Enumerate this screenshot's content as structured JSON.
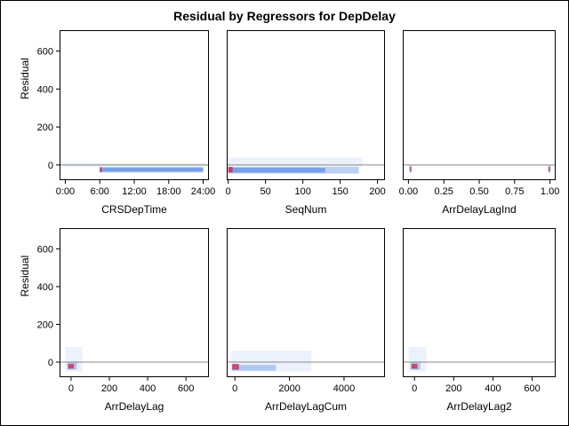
{
  "chart_data": {
    "type": "heatmap",
    "title": "Residual by Regressors for DepDelay",
    "ylabel": "Residual",
    "ylim": [
      -80,
      710
    ],
    "yticks": [
      0,
      200,
      400,
      600
    ],
    "reference_line_y": 0,
    "colors": {
      "frame": "#000000",
      "reference_line": "#888888",
      "low_density": "#dbe6fb",
      "mid_density": "#3f78e0",
      "high_density": "#cc3355"
    },
    "panels": [
      {
        "xlabel": "CRSDepTime",
        "xlim": [
          -60,
          1500
        ],
        "xticks": [
          0,
          360,
          720,
          1080,
          1440
        ],
        "xticklabels": [
          "0:00",
          "6:00",
          "12:00",
          "18:00",
          "24:00"
        ],
        "density": [
          {
            "x": [
              -40,
              1480
            ],
            "y": [
              -10,
              10
            ],
            "level": 1
          },
          {
            "x": [
              360,
              1440
            ],
            "y": [
              -40,
              -10
            ],
            "level": 2
          },
          {
            "x": [
              360,
              1440
            ],
            "y": [
              -35,
              -15
            ],
            "level": 3
          },
          {
            "x": [
              360,
              380
            ],
            "y": [
              -38,
              -12
            ],
            "level": 5
          }
        ]
      },
      {
        "xlabel": "SeqNum",
        "xlim": [
          -2,
          210
        ],
        "xticks": [
          0,
          50,
          100,
          150,
          200
        ],
        "xticklabels": [
          "0",
          "50",
          "100",
          "150",
          "200"
        ],
        "density": [
          {
            "x": [
              0,
              180
            ],
            "y": [
              -10,
              40
            ],
            "level": 1
          },
          {
            "x": [
              0,
              175
            ],
            "y": [
              -45,
              -10
            ],
            "level": 2
          },
          {
            "x": [
              0,
              130
            ],
            "y": [
              -40,
              -15
            ],
            "level": 3
          },
          {
            "x": [
              0,
              6
            ],
            "y": [
              -40,
              -10
            ],
            "level": 5
          }
        ]
      },
      {
        "xlabel": "ArrDelayLagInd",
        "xlim": [
          -0.04,
          1.04
        ],
        "xticks": [
          0,
          0.25,
          0.5,
          0.75,
          1
        ],
        "xticklabels": [
          "0.00",
          "0.25",
          "0.50",
          "0.75",
          "1.00"
        ],
        "density": [
          {
            "x": [
              0.005,
              0.025
            ],
            "y": [
              -40,
              0
            ],
            "level": 2
          },
          {
            "x": [
              0.01,
              0.02
            ],
            "y": [
              -35,
              -10
            ],
            "level": 5
          },
          {
            "x": [
              0.985,
              1.005
            ],
            "y": [
              -40,
              0
            ],
            "level": 2
          },
          {
            "x": [
              0.99,
              1.0
            ],
            "y": [
              -35,
              -10
            ],
            "level": 5
          }
        ]
      },
      {
        "xlabel": "ArrDelayLag",
        "xlim": [
          -60,
          720
        ],
        "xticks": [
          0,
          200,
          400,
          600
        ],
        "xticklabels": [
          "0",
          "200",
          "400",
          "600"
        ],
        "density": [
          {
            "x": [
              -30,
              60
            ],
            "y": [
              -50,
              80
            ],
            "level": 1
          },
          {
            "x": [
              -20,
              30
            ],
            "y": [
              -40,
              0
            ],
            "level": 2
          },
          {
            "x": [
              -15,
              15
            ],
            "y": [
              -35,
              -10
            ],
            "level": 5
          }
        ]
      },
      {
        "xlabel": "ArrDelayLagCum",
        "xlim": [
          -300,
          5500
        ],
        "xticks": [
          0,
          2000,
          4000
        ],
        "xticklabels": [
          "0",
          "2000",
          "4000"
        ],
        "density": [
          {
            "x": [
              -150,
              2800
            ],
            "y": [
              -50,
              60
            ],
            "level": 1
          },
          {
            "x": [
              -100,
              1500
            ],
            "y": [
              -45,
              -15
            ],
            "level": 2
          },
          {
            "x": [
              -100,
              150
            ],
            "y": [
              -40,
              -10
            ],
            "level": 5
          }
        ]
      },
      {
        "xlabel": "ArrDelayLag2",
        "xlim": [
          -60,
          720
        ],
        "xticks": [
          0,
          200,
          400,
          600
        ],
        "xticklabels": [
          "0",
          "200",
          "400",
          "600"
        ],
        "density": [
          {
            "x": [
              -30,
              60
            ],
            "y": [
              -50,
              80
            ],
            "level": 1
          },
          {
            "x": [
              -20,
              30
            ],
            "y": [
              -40,
              0
            ],
            "level": 2
          },
          {
            "x": [
              -15,
              15
            ],
            "y": [
              -35,
              -10
            ],
            "level": 5
          }
        ]
      }
    ]
  }
}
